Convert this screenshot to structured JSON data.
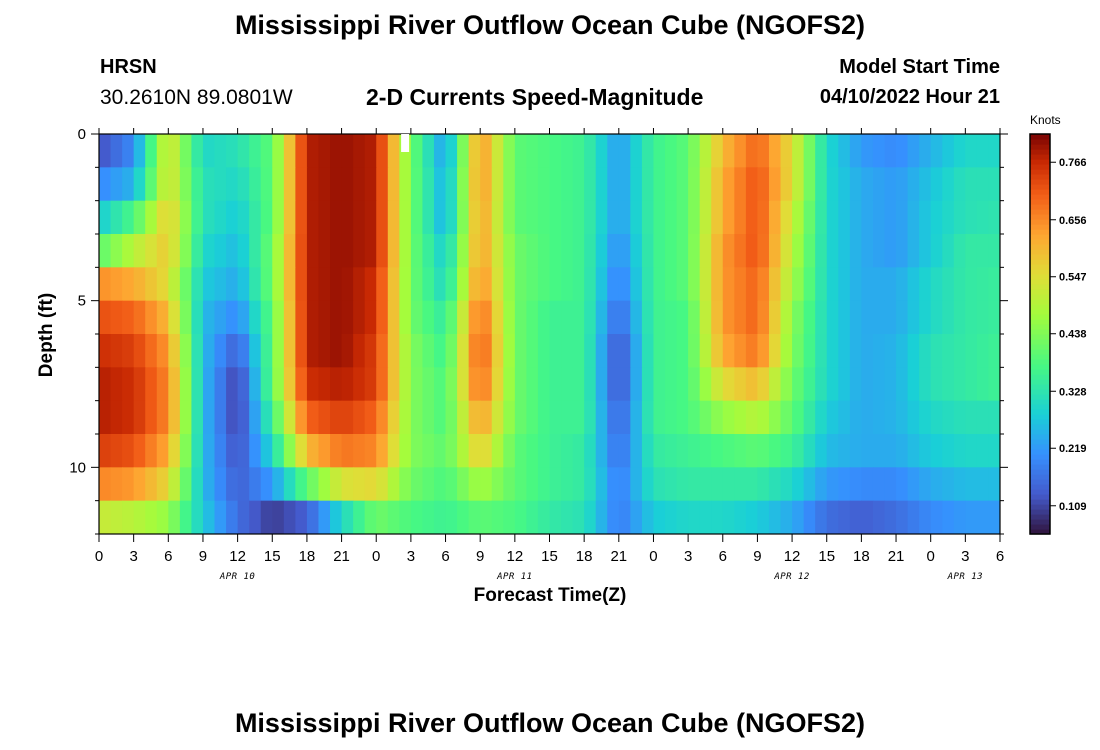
{
  "header": {
    "title": "Mississippi River Outflow Ocean Cube (NGOFS2)",
    "station": "HRSN",
    "coordinates": "30.2610N  89.0801W",
    "subtitle": "2-D Currents Speed-Magnitude",
    "model_start_label": "Model Start Time",
    "model_start_value": "04/10/2022 Hour 21"
  },
  "footer": {
    "title": "Mississippi River Outflow Ocean Cube (NGOFS2)"
  },
  "colors": {
    "background": "#ffffff",
    "axis": "#000000"
  },
  "chart_data": {
    "type": "heatmap",
    "title": "2-D Currents Speed-Magnitude",
    "xlabel": "Forecast Time(Z)",
    "ylabel": "Depth (ft)",
    "xlim": [
      0,
      78
    ],
    "ylim": [
      0,
      12
    ],
    "y_inverted": true,
    "x_ticks": [
      0,
      3,
      6,
      9,
      12,
      15,
      18,
      21,
      24,
      27,
      30,
      33,
      36,
      39,
      42,
      45,
      48,
      51,
      54,
      57,
      60,
      63,
      66,
      69,
      72,
      75,
      78
    ],
    "x_tick_labels": [
      "0",
      "3",
      "6",
      "9",
      "12",
      "15",
      "18",
      "21",
      "0",
      "3",
      "6",
      "9",
      "12",
      "15",
      "18",
      "21",
      "0",
      "3",
      "6",
      "9",
      "12",
      "15",
      "18",
      "21",
      "0",
      "3",
      "6"
    ],
    "y_ticks": [
      0,
      5,
      10
    ],
    "y_tick_labels": [
      "0",
      "5",
      "10"
    ],
    "date_labels": [
      {
        "x": 12,
        "text": "APR 10"
      },
      {
        "x": 36,
        "text": "APR 11"
      },
      {
        "x": 60,
        "text": "APR 12"
      },
      {
        "x": 75,
        "text": "APR 13"
      }
    ],
    "colorbar": {
      "unit": "Knots",
      "range": [
        0.055,
        0.82
      ],
      "ticks": [
        0.109,
        0.219,
        0.328,
        0.438,
        0.547,
        0.656,
        0.766
      ],
      "tick_labels": [
        "0.109",
        "0.219",
        "0.328",
        "0.438",
        "0.547",
        "0.656",
        "0.766"
      ]
    },
    "hours": [
      0,
      3,
      6,
      9,
      12,
      15,
      18,
      21,
      24,
      27,
      30,
      33,
      36,
      39,
      42,
      45,
      48,
      51,
      54,
      57,
      60,
      63,
      66,
      69,
      72,
      75,
      78
    ],
    "depths": [
      0.5,
      1.5,
      2.5,
      3.5,
      4.5,
      5.5,
      6.5,
      7.5,
      8.5,
      9.5,
      10.5,
      11.5
    ],
    "speed": [
      [
        0.12,
        0.2,
        0.55,
        0.3,
        0.32,
        0.4,
        0.78,
        0.8,
        0.78,
        0.42,
        0.22,
        0.65,
        0.4,
        0.38,
        0.36,
        0.22,
        0.36,
        0.4,
        0.6,
        0.7,
        0.55,
        0.3,
        0.22,
        0.2,
        0.25,
        0.3,
        0.3
      ],
      [
        0.2,
        0.25,
        0.55,
        0.32,
        0.3,
        0.4,
        0.78,
        0.8,
        0.78,
        0.42,
        0.24,
        0.65,
        0.4,
        0.38,
        0.36,
        0.22,
        0.36,
        0.4,
        0.62,
        0.72,
        0.55,
        0.3,
        0.24,
        0.22,
        0.27,
        0.32,
        0.32
      ],
      [
        0.28,
        0.38,
        0.58,
        0.32,
        0.28,
        0.4,
        0.78,
        0.8,
        0.78,
        0.42,
        0.24,
        0.64,
        0.4,
        0.38,
        0.36,
        0.22,
        0.36,
        0.4,
        0.62,
        0.72,
        0.52,
        0.3,
        0.24,
        0.22,
        0.28,
        0.32,
        0.33
      ],
      [
        0.4,
        0.5,
        0.58,
        0.3,
        0.26,
        0.42,
        0.78,
        0.8,
        0.78,
        0.42,
        0.28,
        0.64,
        0.42,
        0.38,
        0.36,
        0.2,
        0.36,
        0.4,
        0.64,
        0.72,
        0.5,
        0.3,
        0.24,
        0.22,
        0.28,
        0.34,
        0.34
      ],
      [
        0.65,
        0.62,
        0.55,
        0.28,
        0.24,
        0.42,
        0.78,
        0.8,
        0.76,
        0.42,
        0.3,
        0.66,
        0.42,
        0.38,
        0.36,
        0.18,
        0.36,
        0.4,
        0.64,
        0.7,
        0.48,
        0.3,
        0.24,
        0.24,
        0.3,
        0.34,
        0.35
      ],
      [
        0.72,
        0.7,
        0.6,
        0.26,
        0.2,
        0.4,
        0.78,
        0.8,
        0.76,
        0.42,
        0.34,
        0.7,
        0.42,
        0.36,
        0.36,
        0.15,
        0.36,
        0.38,
        0.64,
        0.7,
        0.45,
        0.3,
        0.24,
        0.24,
        0.3,
        0.34,
        0.35
      ],
      [
        0.76,
        0.74,
        0.64,
        0.26,
        0.14,
        0.4,
        0.78,
        0.8,
        0.74,
        0.44,
        0.36,
        0.72,
        0.42,
        0.36,
        0.36,
        0.12,
        0.36,
        0.38,
        0.62,
        0.68,
        0.44,
        0.3,
        0.24,
        0.25,
        0.32,
        0.34,
        0.36
      ],
      [
        0.78,
        0.76,
        0.66,
        0.26,
        0.1,
        0.4,
        0.76,
        0.78,
        0.74,
        0.44,
        0.38,
        0.7,
        0.42,
        0.36,
        0.36,
        0.12,
        0.36,
        0.38,
        0.55,
        0.6,
        0.42,
        0.3,
        0.24,
        0.25,
        0.32,
        0.34,
        0.36
      ],
      [
        0.78,
        0.76,
        0.66,
        0.26,
        0.1,
        0.36,
        0.7,
        0.74,
        0.7,
        0.44,
        0.38,
        0.64,
        0.42,
        0.36,
        0.36,
        0.14,
        0.36,
        0.38,
        0.46,
        0.5,
        0.4,
        0.28,
        0.24,
        0.25,
        0.3,
        0.32,
        0.32
      ],
      [
        0.74,
        0.72,
        0.62,
        0.26,
        0.12,
        0.3,
        0.6,
        0.68,
        0.66,
        0.44,
        0.4,
        0.58,
        0.4,
        0.36,
        0.34,
        0.16,
        0.34,
        0.36,
        0.38,
        0.4,
        0.36,
        0.26,
        0.24,
        0.24,
        0.28,
        0.3,
        0.3
      ],
      [
        0.66,
        0.64,
        0.56,
        0.26,
        0.14,
        0.22,
        0.4,
        0.54,
        0.56,
        0.42,
        0.38,
        0.48,
        0.4,
        0.36,
        0.34,
        0.18,
        0.32,
        0.34,
        0.34,
        0.34,
        0.3,
        0.22,
        0.2,
        0.2,
        0.24,
        0.26,
        0.26
      ],
      [
        0.52,
        0.5,
        0.46,
        0.28,
        0.16,
        0.1,
        0.14,
        0.3,
        0.42,
        0.38,
        0.36,
        0.4,
        0.38,
        0.34,
        0.32,
        0.18,
        0.28,
        0.3,
        0.3,
        0.28,
        0.24,
        0.16,
        0.14,
        0.16,
        0.2,
        0.22,
        0.22
      ]
    ]
  }
}
